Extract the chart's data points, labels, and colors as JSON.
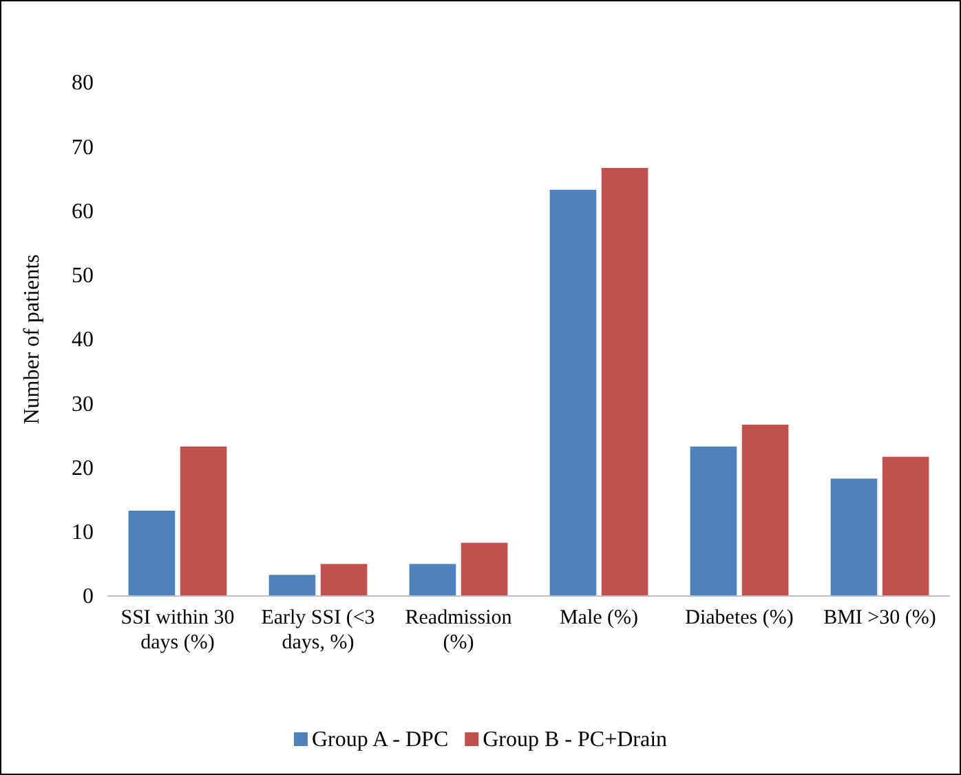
{
  "chart_data": {
    "type": "bar",
    "ylabel": "Number of patients",
    "categories": [
      "SSI within 30 days (%)",
      "Early SSI (<3 days, %)",
      "Readmission (%)",
      "Male (%)",
      "Diabetes (%)",
      "BMI >30 (%)"
    ],
    "series": [
      {
        "name": "Group A - DPC",
        "color": "#4f81bd",
        "values": [
          13.3,
          3.3,
          5,
          63.3,
          23.3,
          18.3
        ]
      },
      {
        "name": "Group B - PC+Drain",
        "color": "#c0504d",
        "values": [
          23.3,
          5,
          8.3,
          66.7,
          26.7,
          21.7
        ]
      }
    ],
    "ylim": [
      0,
      80
    ],
    "yticks": [
      0,
      10,
      20,
      30,
      40,
      50,
      60,
      70,
      80
    ],
    "grid": false,
    "legend": "bottom"
  }
}
